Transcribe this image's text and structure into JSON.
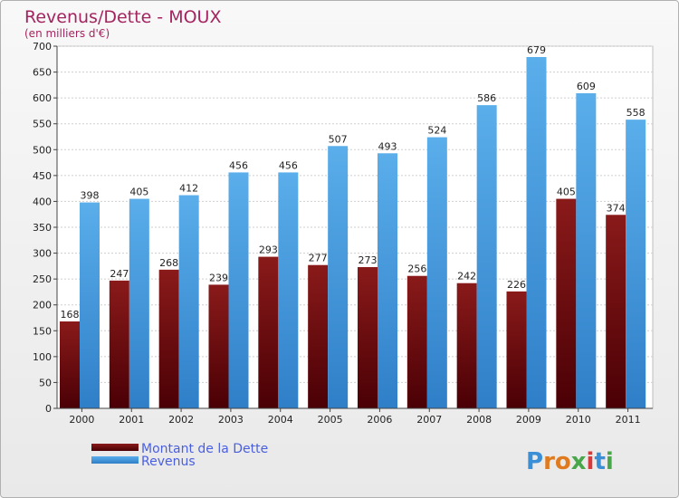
{
  "chart_data": {
    "type": "bar",
    "title": "Revenus/Dette - MOUX",
    "subtitle": "(en milliers d'€)",
    "categories": [
      "2000",
      "2001",
      "2002",
      "2003",
      "2004",
      "2005",
      "2006",
      "2007",
      "2008",
      "2009",
      "2010",
      "2011"
    ],
    "series": [
      {
        "name": "Montant de la Dette",
        "color": "#7a0a10",
        "values": [
          168,
          247,
          268,
          239,
          293,
          277,
          273,
          256,
          242,
          226,
          405,
          374
        ]
      },
      {
        "name": "Revenus",
        "color": "#4ea3e6",
        "values": [
          398,
          405,
          412,
          456,
          456,
          507,
          493,
          524,
          586,
          679,
          609,
          558
        ]
      }
    ],
    "ylim": [
      0,
      700
    ],
    "yticks": [
      0,
      50,
      100,
      150,
      200,
      250,
      300,
      350,
      400,
      450,
      500,
      550,
      600,
      650,
      700
    ],
    "grid": true,
    "legend_position": "bottom-left"
  },
  "brand": {
    "logo_text": "Proxiti"
  }
}
